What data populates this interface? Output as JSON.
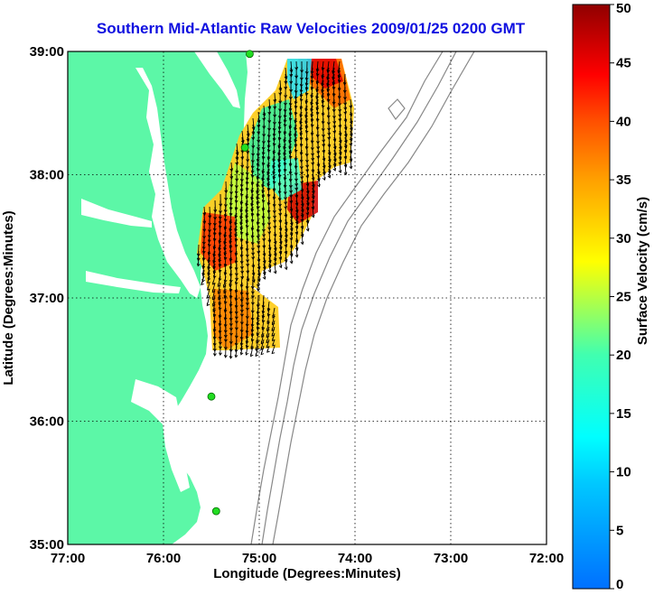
{
  "title": "Southern Mid-Atlantic Raw Velocities 2009/01/25 0200 GMT",
  "xlabel": "Longitude (Degrees:Minutes)",
  "ylabel": "Latitude (Degrees:Minutes)",
  "colorbar": {
    "label": "Surface Velocity (cm/s)",
    "range": [
      0,
      50
    ],
    "ticks": [
      "0",
      "5",
      "10",
      "15",
      "20",
      "25",
      "30",
      "35",
      "40",
      "45",
      "50"
    ],
    "colormap": "jet"
  },
  "x_ticks": [
    "77:00",
    "76:00",
    "75:00",
    "74:00",
    "73:00",
    "72:00"
  ],
  "y_ticks": [
    "39:00",
    "38:00",
    "37:00",
    "36:00",
    "35:00"
  ],
  "colors": {
    "land": "#5cf7a7",
    "title": "#1010e0",
    "station": "#22dd22",
    "isobath": "#888888"
  },
  "map_extent": {
    "lon": [
      -77,
      -72
    ],
    "lat": [
      35,
      39
    ]
  },
  "stations": [
    {
      "lon": -75.1,
      "lat": 38.98
    },
    {
      "lon": -75.15,
      "lat": 38.22
    },
    {
      "lon": -75.5,
      "lat": 36.2
    },
    {
      "lon": -75.45,
      "lat": 35.27
    }
  ]
}
